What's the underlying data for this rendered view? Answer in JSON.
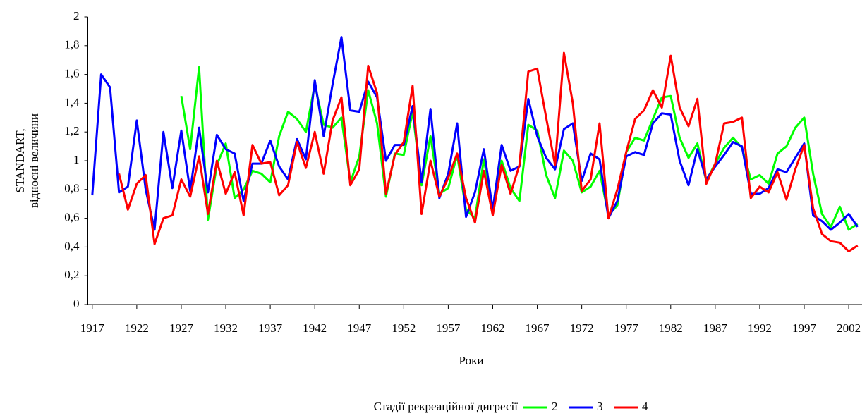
{
  "chart_data": {
    "type": "line",
    "y_label": [
      "STANDART,",
      "відносні величини"
    ],
    "x_label": "Роки",
    "legend_title": "Стадії рекреаційної дигресії",
    "legend": "bottom",
    "x": [
      1917,
      1918,
      1919,
      1920,
      1921,
      1922,
      1923,
      1924,
      1925,
      1926,
      1927,
      1928,
      1929,
      1930,
      1931,
      1932,
      1933,
      1934,
      1935,
      1936,
      1937,
      1938,
      1939,
      1940,
      1941,
      1942,
      1943,
      1944,
      1945,
      1946,
      1947,
      1948,
      1949,
      1950,
      1951,
      1952,
      1953,
      1954,
      1955,
      1956,
      1957,
      1958,
      1959,
      1960,
      1961,
      1962,
      1963,
      1964,
      1965,
      1966,
      1967,
      1968,
      1969,
      1970,
      1971,
      1972,
      1973,
      1974,
      1975,
      1976,
      1977,
      1978,
      1979,
      1980,
      1981,
      1982,
      1983,
      1984,
      1985,
      1986,
      1987,
      1988,
      1989,
      1990,
      1991,
      1992,
      1993,
      1994,
      1995,
      1996,
      1997,
      1998,
      1999,
      2000,
      2001,
      2002,
      2003
    ],
    "xlim": [
      1916.5,
      2003.5
    ],
    "xticks": [
      1917,
      1922,
      1927,
      1932,
      1937,
      1942,
      1947,
      1952,
      1957,
      1962,
      1967,
      1972,
      1977,
      1982,
      1987,
      1992,
      1997,
      2002
    ],
    "ylim": [
      0,
      2
    ],
    "yticks": [
      0,
      {
        "value": 0.2,
        "label": "0,2"
      },
      {
        "value": 0.4,
        "label": "0,4"
      },
      {
        "value": 0.6,
        "label": "0,6"
      },
      {
        "value": 0.8,
        "label": "0,8"
      },
      1,
      {
        "value": 1.2,
        "label": "1,2"
      },
      {
        "value": 1.4,
        "label": "1,4"
      },
      {
        "value": 1.6,
        "label": "1,6"
      },
      {
        "value": 1.8,
        "label": "1,8"
      },
      2
    ],
    "series": [
      {
        "name": "2",
        "color": "#00ff00",
        "values": [
          null,
          null,
          null,
          null,
          null,
          null,
          null,
          null,
          null,
          null,
          1.45,
          1.08,
          1.65,
          0.59,
          0.97,
          1.12,
          0.74,
          0.8,
          0.93,
          0.91,
          0.85,
          1.17,
          1.34,
          1.29,
          1.2,
          1.53,
          1.25,
          1.23,
          1.3,
          0.85,
          1.03,
          1.49,
          1.26,
          0.75,
          1.05,
          1.04,
          1.34,
          0.83,
          1.17,
          0.77,
          0.81,
          1.04,
          0.66,
          0.6,
          1.01,
          0.66,
          1.0,
          0.81,
          0.72,
          1.25,
          1.21,
          0.9,
          0.74,
          1.07,
          1.0,
          0.78,
          0.82,
          0.93,
          0.62,
          0.69,
          1.06,
          1.16,
          1.14,
          1.29,
          1.44,
          1.45,
          1.16,
          1.02,
          1.12,
          0.86,
          0.98,
          1.09,
          1.16,
          1.09,
          0.87,
          0.9,
          0.84,
          1.05,
          1.1,
          1.23,
          1.3,
          0.91,
          0.63,
          0.54,
          0.68,
          0.52,
          0.56
        ]
      },
      {
        "name": "3",
        "color": "#0000ff",
        "values": [
          0.76,
          1.6,
          1.51,
          0.78,
          0.82,
          1.28,
          0.8,
          0.52,
          1.2,
          0.81,
          1.21,
          0.79,
          1.23,
          0.78,
          1.18,
          1.08,
          1.05,
          0.72,
          0.98,
          0.98,
          1.14,
          0.96,
          0.87,
          1.15,
          1.01,
          1.56,
          1.17,
          1.53,
          1.86,
          1.35,
          1.34,
          1.55,
          1.44,
          1.0,
          1.11,
          1.11,
          1.38,
          0.85,
          1.36,
          0.74,
          0.91,
          1.26,
          0.61,
          0.78,
          1.08,
          0.66,
          1.11,
          0.93,
          0.96,
          1.43,
          1.17,
          1.02,
          0.94,
          1.22,
          1.26,
          0.86,
          1.05,
          1.01,
          0.6,
          0.72,
          1.03,
          1.06,
          1.04,
          1.26,
          1.33,
          1.32,
          1.0,
          0.83,
          1.08,
          0.87,
          0.96,
          1.04,
          1.13,
          1.1,
          0.77,
          0.77,
          0.81,
          0.94,
          0.92,
          1.02,
          1.12,
          0.62,
          0.58,
          0.52,
          0.57,
          0.63,
          0.54
        ]
      },
      {
        "name": "4",
        "color": "#ff0000",
        "values": [
          null,
          null,
          null,
          0.91,
          0.66,
          0.84,
          0.9,
          0.42,
          0.6,
          0.62,
          0.87,
          0.75,
          1.03,
          0.63,
          1.0,
          0.77,
          0.92,
          0.62,
          1.11,
          0.98,
          0.99,
          0.76,
          0.83,
          1.13,
          0.95,
          1.2,
          0.91,
          1.28,
          1.44,
          0.83,
          0.94,
          1.66,
          1.47,
          0.77,
          1.04,
          1.13,
          1.52,
          0.63,
          1.0,
          0.75,
          0.88,
          1.05,
          0.74,
          0.57,
          0.93,
          0.62,
          0.97,
          0.77,
          0.97,
          1.62,
          1.64,
          1.3,
          0.97,
          1.75,
          1.4,
          0.79,
          0.87,
          1.26,
          0.6,
          0.8,
          1.06,
          1.29,
          1.35,
          1.49,
          1.37,
          1.73,
          1.37,
          1.24,
          1.43,
          0.84,
          0.98,
          1.26,
          1.27,
          1.3,
          0.74,
          0.82,
          0.78,
          0.92,
          0.73,
          0.94,
          1.11,
          0.67,
          0.49,
          0.44,
          0.43,
          0.37,
          0.41
        ]
      }
    ]
  }
}
